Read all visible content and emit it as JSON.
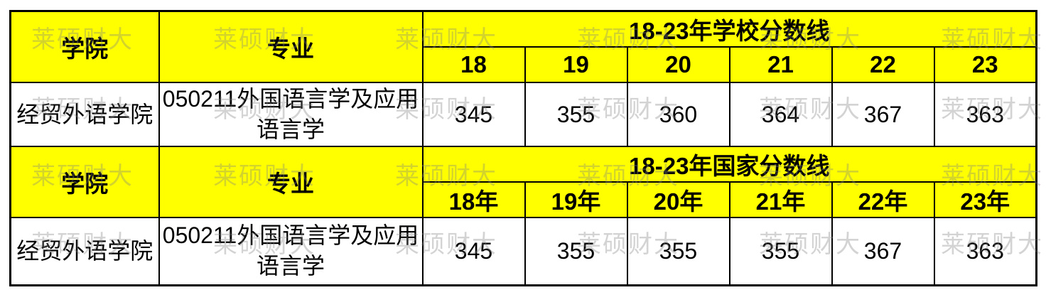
{
  "colors": {
    "header_bg": "#ffff00",
    "border": "#000000",
    "watermark": "rgba(130,130,130,0.35)"
  },
  "watermark": {
    "text": "莱硕财大"
  },
  "sections": [
    {
      "college_header": "学院",
      "major_header": "专业",
      "title": "18-23年学校分数线",
      "year_headers": [
        "18",
        "19",
        "20",
        "21",
        "22",
        "23"
      ],
      "row": {
        "college": "经贸外语学院",
        "major": "050211外国语言学及应用语言学",
        "scores": [
          "345",
          "355",
          "360",
          "364",
          "367",
          "363"
        ]
      }
    },
    {
      "college_header": "学院",
      "major_header": "专业",
      "title": "18-23年国家分数线",
      "year_headers": [
        "18年",
        "19年",
        "20年",
        "21年",
        "22年",
        "23年"
      ],
      "row": {
        "college": "经贸外语学院",
        "major": "050211外国语言学及应用语言学",
        "scores": [
          "345",
          "355",
          "355",
          "355",
          "367",
          "363"
        ]
      }
    }
  ]
}
